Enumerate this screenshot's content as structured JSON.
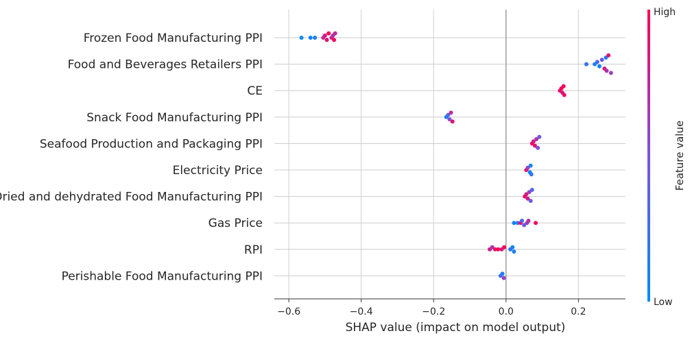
{
  "chart_data": {
    "type": "scatter",
    "title": "",
    "xlabel": "SHAP value (impact on model output)",
    "ylabel": "",
    "xlim": [
      -0.64,
      0.33
    ],
    "xticks": [
      -0.6,
      -0.4,
      -0.2,
      0.0,
      0.2
    ],
    "xtick_labels": [
      "−0.6",
      "−0.4",
      "−0.2",
      "0.0",
      "0.2"
    ],
    "grid": true,
    "colorbar": {
      "title": "Feature value",
      "high_label": "High",
      "low_label": "Low",
      "low_color": "#008bfb",
      "mid_color": "#7c52e0",
      "high_color": "#ff0052",
      "position": "right"
    },
    "features": [
      {
        "name": "Frozen Food Manufacturing PPI",
        "points": [
          {
            "x": -0.565,
            "v": 0.0
          },
          {
            "x": -0.54,
            "v": 0.08
          },
          {
            "x": -0.528,
            "v": 0.12
          },
          {
            "x": -0.505,
            "v": 0.75
          },
          {
            "x": -0.5,
            "v": 0.85
          },
          {
            "x": -0.495,
            "v": 0.9
          },
          {
            "x": -0.49,
            "v": 1.0
          },
          {
            "x": -0.482,
            "v": 0.8
          },
          {
            "x": -0.478,
            "v": 0.7
          },
          {
            "x": -0.475,
            "v": 0.95
          },
          {
            "x": -0.472,
            "v": 0.75
          }
        ]
      },
      {
        "name": "Food and Beverages Retailers PPI",
        "points": [
          {
            "x": 0.222,
            "v": 0.2
          },
          {
            "x": 0.245,
            "v": 0.1
          },
          {
            "x": 0.252,
            "v": 0.3
          },
          {
            "x": 0.258,
            "v": 0.05
          },
          {
            "x": 0.265,
            "v": 0.4
          },
          {
            "x": 0.272,
            "v": 0.85
          },
          {
            "x": 0.276,
            "v": 0.15
          },
          {
            "x": 0.278,
            "v": 0.7
          },
          {
            "x": 0.283,
            "v": 0.9
          },
          {
            "x": 0.29,
            "v": 0.6
          }
        ]
      },
      {
        "name": "CE",
        "points": [
          {
            "x": 0.149,
            "v": 0.9
          },
          {
            "x": 0.153,
            "v": 1.0
          },
          {
            "x": 0.156,
            "v": 0.85
          },
          {
            "x": 0.159,
            "v": 0.95
          },
          {
            "x": 0.161,
            "v": 0.9
          }
        ]
      },
      {
        "name": "Snack Food Manufacturing PPI",
        "points": [
          {
            "x": -0.165,
            "v": 0.15
          },
          {
            "x": -0.16,
            "v": 0.3
          },
          {
            "x": -0.156,
            "v": 0.5
          },
          {
            "x": -0.152,
            "v": 0.75
          },
          {
            "x": -0.148,
            "v": 0.9
          }
        ]
      },
      {
        "name": "Seafood Production and Packaging PPI",
        "points": [
          {
            "x": 0.072,
            "v": 0.95
          },
          {
            "x": 0.076,
            "v": 0.85
          },
          {
            "x": 0.08,
            "v": 0.9
          },
          {
            "x": 0.084,
            "v": 0.7
          },
          {
            "x": 0.088,
            "v": 0.5
          },
          {
            "x": 0.092,
            "v": 0.45
          }
        ]
      },
      {
        "name": "Electricity Price",
        "points": [
          {
            "x": 0.056,
            "v": 0.9
          },
          {
            "x": 0.06,
            "v": 0.6
          },
          {
            "x": 0.066,
            "v": 0.05
          },
          {
            "x": 0.068,
            "v": 0.1
          },
          {
            "x": 0.07,
            "v": 0.2
          }
        ]
      },
      {
        "name": "Dried and dehydrated Food Manufacturing PPI",
        "points": [
          {
            "x": 0.052,
            "v": 0.95
          },
          {
            "x": 0.056,
            "v": 0.85
          },
          {
            "x": 0.06,
            "v": 0.8
          },
          {
            "x": 0.064,
            "v": 0.6
          },
          {
            "x": 0.068,
            "v": 0.45
          },
          {
            "x": 0.072,
            "v": 0.35
          }
        ]
      },
      {
        "name": "Gas Price",
        "points": [
          {
            "x": 0.022,
            "v": 0.05
          },
          {
            "x": 0.032,
            "v": 0.2
          },
          {
            "x": 0.04,
            "v": 0.9
          },
          {
            "x": 0.044,
            "v": 0.3
          },
          {
            "x": 0.05,
            "v": 0.4
          },
          {
            "x": 0.058,
            "v": 0.6
          },
          {
            "x": 0.062,
            "v": 0.7
          },
          {
            "x": 0.082,
            "v": 0.95
          }
        ]
      },
      {
        "name": "RPI",
        "points": [
          {
            "x": -0.045,
            "v": 0.8
          },
          {
            "x": -0.038,
            "v": 0.7
          },
          {
            "x": -0.03,
            "v": 0.9
          },
          {
            "x": -0.022,
            "v": 1.0
          },
          {
            "x": -0.012,
            "v": 0.85
          },
          {
            "x": -0.005,
            "v": 0.95
          },
          {
            "x": 0.012,
            "v": 0.2
          },
          {
            "x": 0.018,
            "v": 0.05
          },
          {
            "x": 0.022,
            "v": 0.1
          }
        ]
      },
      {
        "name": "Perishable Food Manufacturing PPI",
        "points": [
          {
            "x": -0.015,
            "v": 0.3
          },
          {
            "x": -0.01,
            "v": 0.1
          },
          {
            "x": -0.006,
            "v": 0.6
          }
        ]
      }
    ]
  }
}
